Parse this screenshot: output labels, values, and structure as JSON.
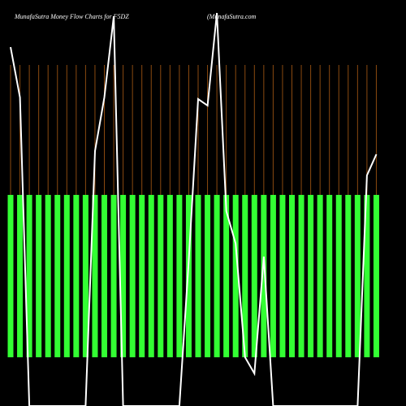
{
  "chart_data": {
    "type": "bar-line",
    "title": "MunafaSutra  Money Flow  Charts for F5DZ",
    "subtitle": "(MunafaSutra.com",
    "bar_color": "#33ff33",
    "line_color": "#ffffff",
    "grid_color": "#8b4a10",
    "ylim": [
      -30,
      210
    ],
    "bars": [
      100,
      100,
      100,
      100,
      100,
      100,
      100,
      100,
      100,
      100,
      100,
      100,
      100,
      100,
      100,
      100,
      100,
      100,
      100,
      100,
      100,
      100,
      100,
      100,
      100,
      100,
      100,
      100,
      100,
      100,
      100,
      100,
      100,
      100,
      100,
      100,
      100,
      100,
      100,
      100
    ],
    "line": [
      191,
      160,
      -30,
      -30,
      -30,
      -30,
      -30,
      -30,
      -30,
      127,
      160,
      210,
      -30,
      -30,
      -30,
      -30,
      -30,
      -30,
      -30,
      60,
      159,
      155,
      212,
      90,
      70,
      0,
      -10,
      62,
      -30,
      -30,
      -30,
      -30,
      -30,
      -30,
      -30,
      -30,
      -30,
      -30,
      112,
      125
    ]
  }
}
